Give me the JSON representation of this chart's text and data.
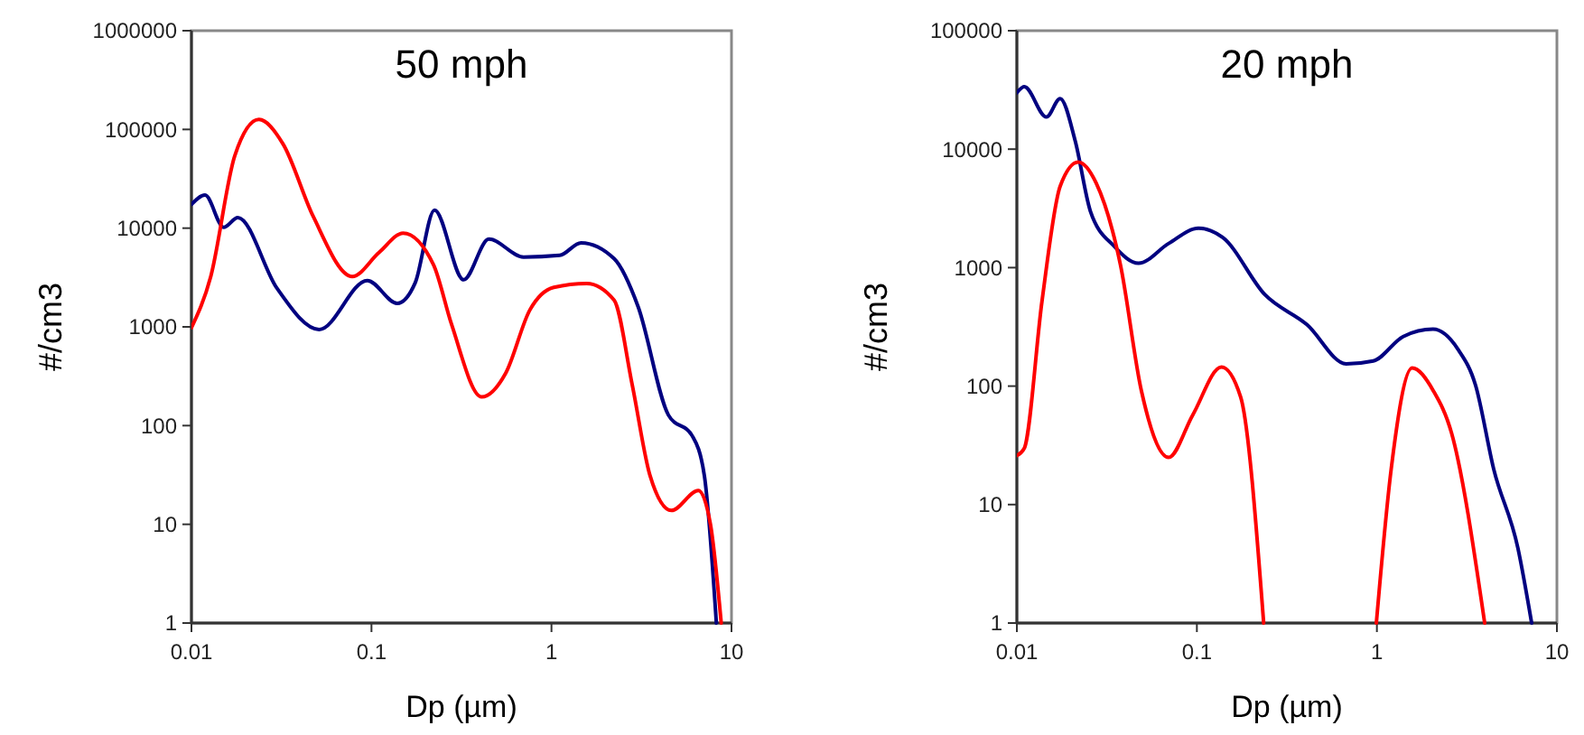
{
  "chart_data": [
    {
      "type": "line",
      "title": "50 mph",
      "xlabel": "Dp (µm)",
      "ylabel": "#/cm3",
      "log": "xy",
      "grid": false,
      "line_style": "solid",
      "xlim": [
        0.01,
        10
      ],
      "xticks": [
        0.01,
        0.1,
        1,
        10
      ],
      "ylim": [
        1,
        1000000
      ],
      "yticks": [
        1,
        10,
        100,
        1000,
        10000,
        100000,
        1000000
      ],
      "series": [
        {
          "color": "#000080",
          "x": [
            0.01,
            0.0119,
            0.0151,
            0.0181,
            0.0299,
            0.0512,
            0.0948,
            0.139,
            0.175,
            0.224,
            0.325,
            0.449,
            0.7,
            1.11,
            1.46,
            2.23,
            3.03,
            4.46,
            6.07,
            7.07,
            8.24
          ],
          "values": [
            17400,
            21600,
            10200,
            12800,
            2450,
            940,
            2950,
            1730,
            2800,
            15200,
            3000,
            7740,
            5100,
            5300,
            7100,
            4900,
            1600,
            128,
            78,
            31,
            1
          ]
        },
        {
          "color": "#ff0000",
          "x": [
            0.01,
            0.0128,
            0.0174,
            0.0237,
            0.0323,
            0.0474,
            0.0782,
            0.11,
            0.15,
            0.221,
            0.279,
            0.409,
            0.557,
            0.758,
            1.03,
            1.57,
            2.23,
            2.81,
            3.53,
            4.63,
            6.55,
            7.64,
            8.77
          ],
          "values": [
            980,
            3240,
            54000,
            126000,
            71000,
            13200,
            3240,
            5650,
            8900,
            4270,
            1050,
            195,
            340,
            1480,
            2510,
            2750,
            1860,
            258,
            31,
            13.8,
            22,
            10,
            1
          ]
        }
      ]
    },
    {
      "type": "line",
      "title": "20 mph",
      "xlabel": "Dp (µm)",
      "ylabel": "#/cm3",
      "log": "xy",
      "grid": false,
      "line_style": "solid",
      "xlim": [
        0.01,
        10
      ],
      "xticks": [
        0.01,
        0.1,
        1,
        10
      ],
      "ylim": [
        1,
        100000
      ],
      "yticks": [
        1,
        10,
        100,
        1000,
        10000,
        100000
      ],
      "series": [
        {
          "color": "#000080",
          "x": [
            0.01,
            0.011,
            0.0146,
            0.0174,
            0.0211,
            0.0256,
            0.0348,
            0.0474,
            0.0697,
            0.102,
            0.139,
            0.239,
            0.409,
            0.675,
            0.955,
            1.4,
            2.05,
            2.81,
            3.53,
            4.46,
            6.07,
            7.24
          ],
          "values": [
            30000,
            33700,
            18700,
            26700,
            11700,
            3000,
            1510,
            1090,
            1600,
            2150,
            1800,
            590,
            330,
            154,
            163,
            262,
            302,
            206,
            102,
            19.8,
            4.3,
            1
          ]
        },
        {
          "color": "#ff0000",
          "x": [
            0.01,
            0.011,
            0.0138,
            0.0174,
            0.0219,
            0.0276,
            0.0376,
            0.0492,
            0.0697,
            0.0948,
            0.137,
            0.175,
            0.235
          ],
          "values": [
            25.9,
            29.9,
            525,
            4870,
            7780,
            5160,
            1060,
            91,
            25,
            57,
            145,
            81,
            1
          ]
        },
        {
          "color": "#ff0000",
          "x": [
            0.993,
            1.2,
            1.57,
            2.06,
            2.6,
            3.97
          ],
          "values": [
            1,
            19.8,
            142,
            91,
            40,
            1
          ]
        }
      ]
    }
  ]
}
